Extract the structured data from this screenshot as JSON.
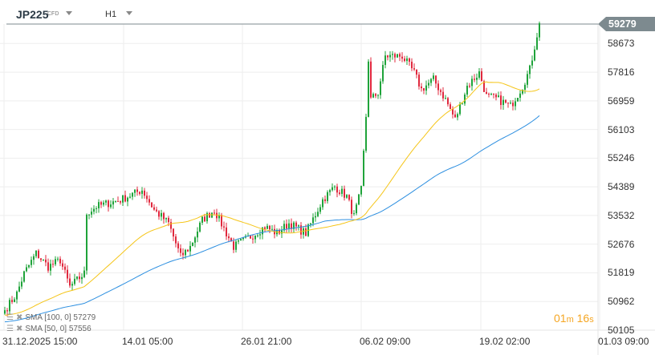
{
  "header": {
    "symbol": "JP225",
    "type": "CFD",
    "timeframe": "H1"
  },
  "countdown": {
    "min": "01",
    "min_unit": "m",
    "sec": "16",
    "sec_unit": "s"
  },
  "colors": {
    "up": "#1fa33a",
    "down": "#e0293e",
    "sma100": "#2d8fe0",
    "sma50": "#f5c518",
    "grid": "#eeeeee",
    "price_tag": "#7d8a8f"
  },
  "legend": [
    {
      "label": "SMA [100,  0]  57279"
    },
    {
      "label": "SMA [50,  0]  57556"
    }
  ],
  "chart_data": {
    "type": "candlestick",
    "title": "JP225 H1",
    "current_price": "59279",
    "y_ticks": [
      "59279",
      "58673",
      "57816",
      "56959",
      "56103",
      "55246",
      "54389",
      "53532",
      "52676",
      "51819",
      "50962",
      "50105"
    ],
    "ylim": [
      50105,
      59279
    ],
    "x_ticks": [
      "31.12.2025  15:00",
      "14.01  05:00",
      "26.01  21:00",
      "06.02  09:00",
      "19.02  02:00",
      "01.03  09:00"
    ],
    "close_keyframes": [
      [
        0,
        50700
      ],
      [
        5,
        51200
      ],
      [
        8,
        51800
      ],
      [
        13,
        52400
      ],
      [
        18,
        52000
      ],
      [
        23,
        52200
      ],
      [
        27,
        51400
      ],
      [
        30,
        51600
      ],
      [
        33,
        51800
      ],
      [
        34,
        53600
      ],
      [
        38,
        53800
      ],
      [
        48,
        54000
      ],
      [
        57,
        54300
      ],
      [
        62,
        53700
      ],
      [
        68,
        53300
      ],
      [
        73,
        52300
      ],
      [
        77,
        52600
      ],
      [
        82,
        53400
      ],
      [
        87,
        53700
      ],
      [
        92,
        53000
      ],
      [
        95,
        52600
      ],
      [
        102,
        52900
      ],
      [
        108,
        53200
      ],
      [
        113,
        53000
      ],
      [
        118,
        53300
      ],
      [
        125,
        53000
      ],
      [
        132,
        54000
      ],
      [
        137,
        54400
      ],
      [
        142,
        54100
      ],
      [
        145,
        53500
      ],
      [
        148,
        54300
      ],
      [
        150,
        56500
      ],
      [
        151,
        58200
      ],
      [
        152,
        57000
      ],
      [
        155,
        57200
      ],
      [
        158,
        58300
      ],
      [
        165,
        58300
      ],
      [
        170,
        57800
      ],
      [
        173,
        57300
      ],
      [
        178,
        57600
      ],
      [
        183,
        57000
      ],
      [
        187,
        56400
      ],
      [
        192,
        57400
      ],
      [
        197,
        57800
      ],
      [
        200,
        57100
      ],
      [
        205,
        57000
      ],
      [
        210,
        56800
      ],
      [
        215,
        57400
      ],
      [
        218,
        57900
      ],
      [
        222,
        59279
      ]
    ],
    "sma": [
      {
        "name": "SMA 100",
        "period": 100,
        "last": 57279
      },
      {
        "name": "SMA 50",
        "period": 50,
        "last": 57556
      }
    ]
  }
}
